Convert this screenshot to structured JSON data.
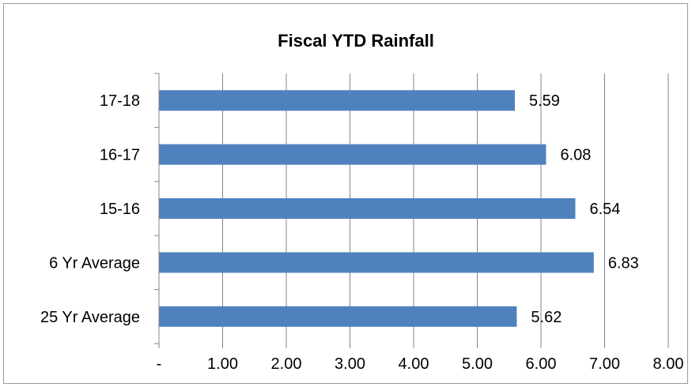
{
  "chart_data": {
    "type": "bar",
    "orientation": "horizontal",
    "title": "Fiscal YTD Rainfall",
    "xlabel": "",
    "ylabel": "",
    "categories": [
      "17-18",
      "16-17",
      "15-16",
      "6 Yr Average",
      "25 Yr Average"
    ],
    "values": [
      5.59,
      6.08,
      6.54,
      6.83,
      5.62
    ],
    "data_labels": [
      "5.59",
      "6.08",
      "6.54",
      "6.83",
      "5.62"
    ],
    "xlim": [
      0,
      8
    ],
    "x_ticks": [
      0,
      1,
      2,
      3,
      4,
      5,
      6,
      7,
      8
    ],
    "x_tick_labels": [
      "-",
      "1.00",
      "2.00",
      "3.00",
      "4.00",
      "5.00",
      "6.00",
      "7.00",
      "8.00"
    ],
    "grid": "vertical",
    "legend": "none",
    "bar_color": "#4f81bd",
    "grid_color": "#868686"
  }
}
